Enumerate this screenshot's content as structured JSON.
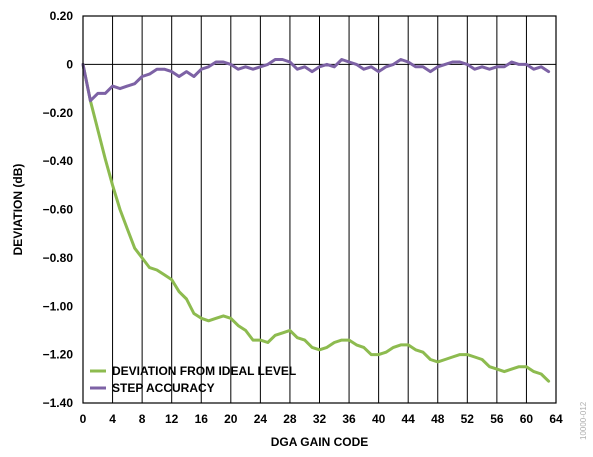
{
  "chart_data": {
    "type": "line",
    "title": "",
    "xlabel": "DGA GAIN CODE",
    "ylabel": "DEVIATION (dB)",
    "xlim": [
      0,
      64
    ],
    "ylim": [
      -1.4,
      0.2
    ],
    "xticks": [
      0,
      4,
      8,
      12,
      16,
      20,
      24,
      28,
      32,
      36,
      40,
      44,
      48,
      52,
      56,
      60,
      64
    ],
    "xtick_labels": [
      "0",
      "4",
      "8",
      "12",
      "16",
      "20",
      "24",
      "28",
      "32",
      "36",
      "40",
      "44",
      "48",
      "52",
      "56",
      "60",
      "64"
    ],
    "yticks": [
      0.2,
      0,
      -0.2,
      -0.4,
      -0.6,
      -0.8,
      -1.0,
      -1.2,
      -1.4
    ],
    "ytick_labels": [
      "0.20",
      "0",
      "−0.20",
      "−0.40",
      "−0.60",
      "−0.80",
      "−1.00",
      "−1.20",
      "−1.40"
    ],
    "grid": "vertical",
    "legend_position": "bottom-left",
    "series": [
      {
        "name": "DEVIATION FROM IDEAL LEVEL",
        "color": "#8DBB4F",
        "x": [
          0,
          1,
          2,
          3,
          4,
          5,
          6,
          7,
          8,
          9,
          10,
          11,
          12,
          13,
          14,
          15,
          16,
          17,
          18,
          19,
          20,
          21,
          22,
          23,
          24,
          25,
          26,
          27,
          28,
          29,
          30,
          31,
          32,
          33,
          34,
          35,
          36,
          37,
          38,
          39,
          40,
          41,
          42,
          43,
          44,
          45,
          46,
          47,
          48,
          49,
          50,
          51,
          52,
          53,
          54,
          55,
          56,
          57,
          58,
          59,
          60,
          61,
          62,
          63
        ],
        "y": [
          0,
          -0.15,
          -0.27,
          -0.39,
          -0.5,
          -0.6,
          -0.68,
          -0.76,
          -0.8,
          -0.84,
          -0.85,
          -0.87,
          -0.89,
          -0.94,
          -0.97,
          -1.03,
          -1.05,
          -1.06,
          -1.05,
          -1.04,
          -1.05,
          -1.08,
          -1.1,
          -1.14,
          -1.14,
          -1.15,
          -1.12,
          -1.11,
          -1.1,
          -1.13,
          -1.14,
          -1.17,
          -1.18,
          -1.17,
          -1.15,
          -1.14,
          -1.14,
          -1.16,
          -1.17,
          -1.2,
          -1.2,
          -1.19,
          -1.17,
          -1.16,
          -1.16,
          -1.18,
          -1.19,
          -1.22,
          -1.23,
          -1.22,
          -1.21,
          -1.2,
          -1.2,
          -1.21,
          -1.22,
          -1.25,
          -1.26,
          -1.27,
          -1.26,
          -1.25,
          -1.25,
          -1.27,
          -1.28,
          -1.31
        ]
      },
      {
        "name": "STEP ACCURACY",
        "color": "#7D62A5",
        "x": [
          0,
          1,
          2,
          3,
          4,
          5,
          6,
          7,
          8,
          9,
          10,
          11,
          12,
          13,
          14,
          15,
          16,
          17,
          18,
          19,
          20,
          21,
          22,
          23,
          24,
          25,
          26,
          27,
          28,
          29,
          30,
          31,
          32,
          33,
          34,
          35,
          36,
          37,
          38,
          39,
          40,
          41,
          42,
          43,
          44,
          45,
          46,
          47,
          48,
          49,
          50,
          51,
          52,
          53,
          54,
          55,
          56,
          57,
          58,
          59,
          60,
          61,
          62,
          63
        ],
        "y": [
          0,
          -0.15,
          -0.12,
          -0.12,
          -0.09,
          -0.1,
          -0.09,
          -0.08,
          -0.05,
          -0.04,
          -0.02,
          -0.02,
          -0.03,
          -0.05,
          -0.03,
          -0.05,
          -0.02,
          -0.01,
          0.01,
          0.01,
          0,
          -0.02,
          -0.01,
          -0.02,
          -0.01,
          0.0,
          0.02,
          0.02,
          0.01,
          -0.02,
          -0.01,
          -0.03,
          -0.01,
          0,
          -0.01,
          0.02,
          0.01,
          0.0,
          -0.02,
          -0.01,
          -0.03,
          -0.01,
          0.0,
          0.02,
          0.01,
          -0.01,
          -0.01,
          -0.03,
          -0.01,
          0.0,
          0.01,
          0.01,
          0.0,
          -0.02,
          -0.01,
          -0.02,
          -0.01,
          -0.01,
          0.01,
          0.0,
          0.0,
          -0.02,
          -0.01,
          -0.03
        ]
      }
    ]
  },
  "figure_id": "10000-012"
}
